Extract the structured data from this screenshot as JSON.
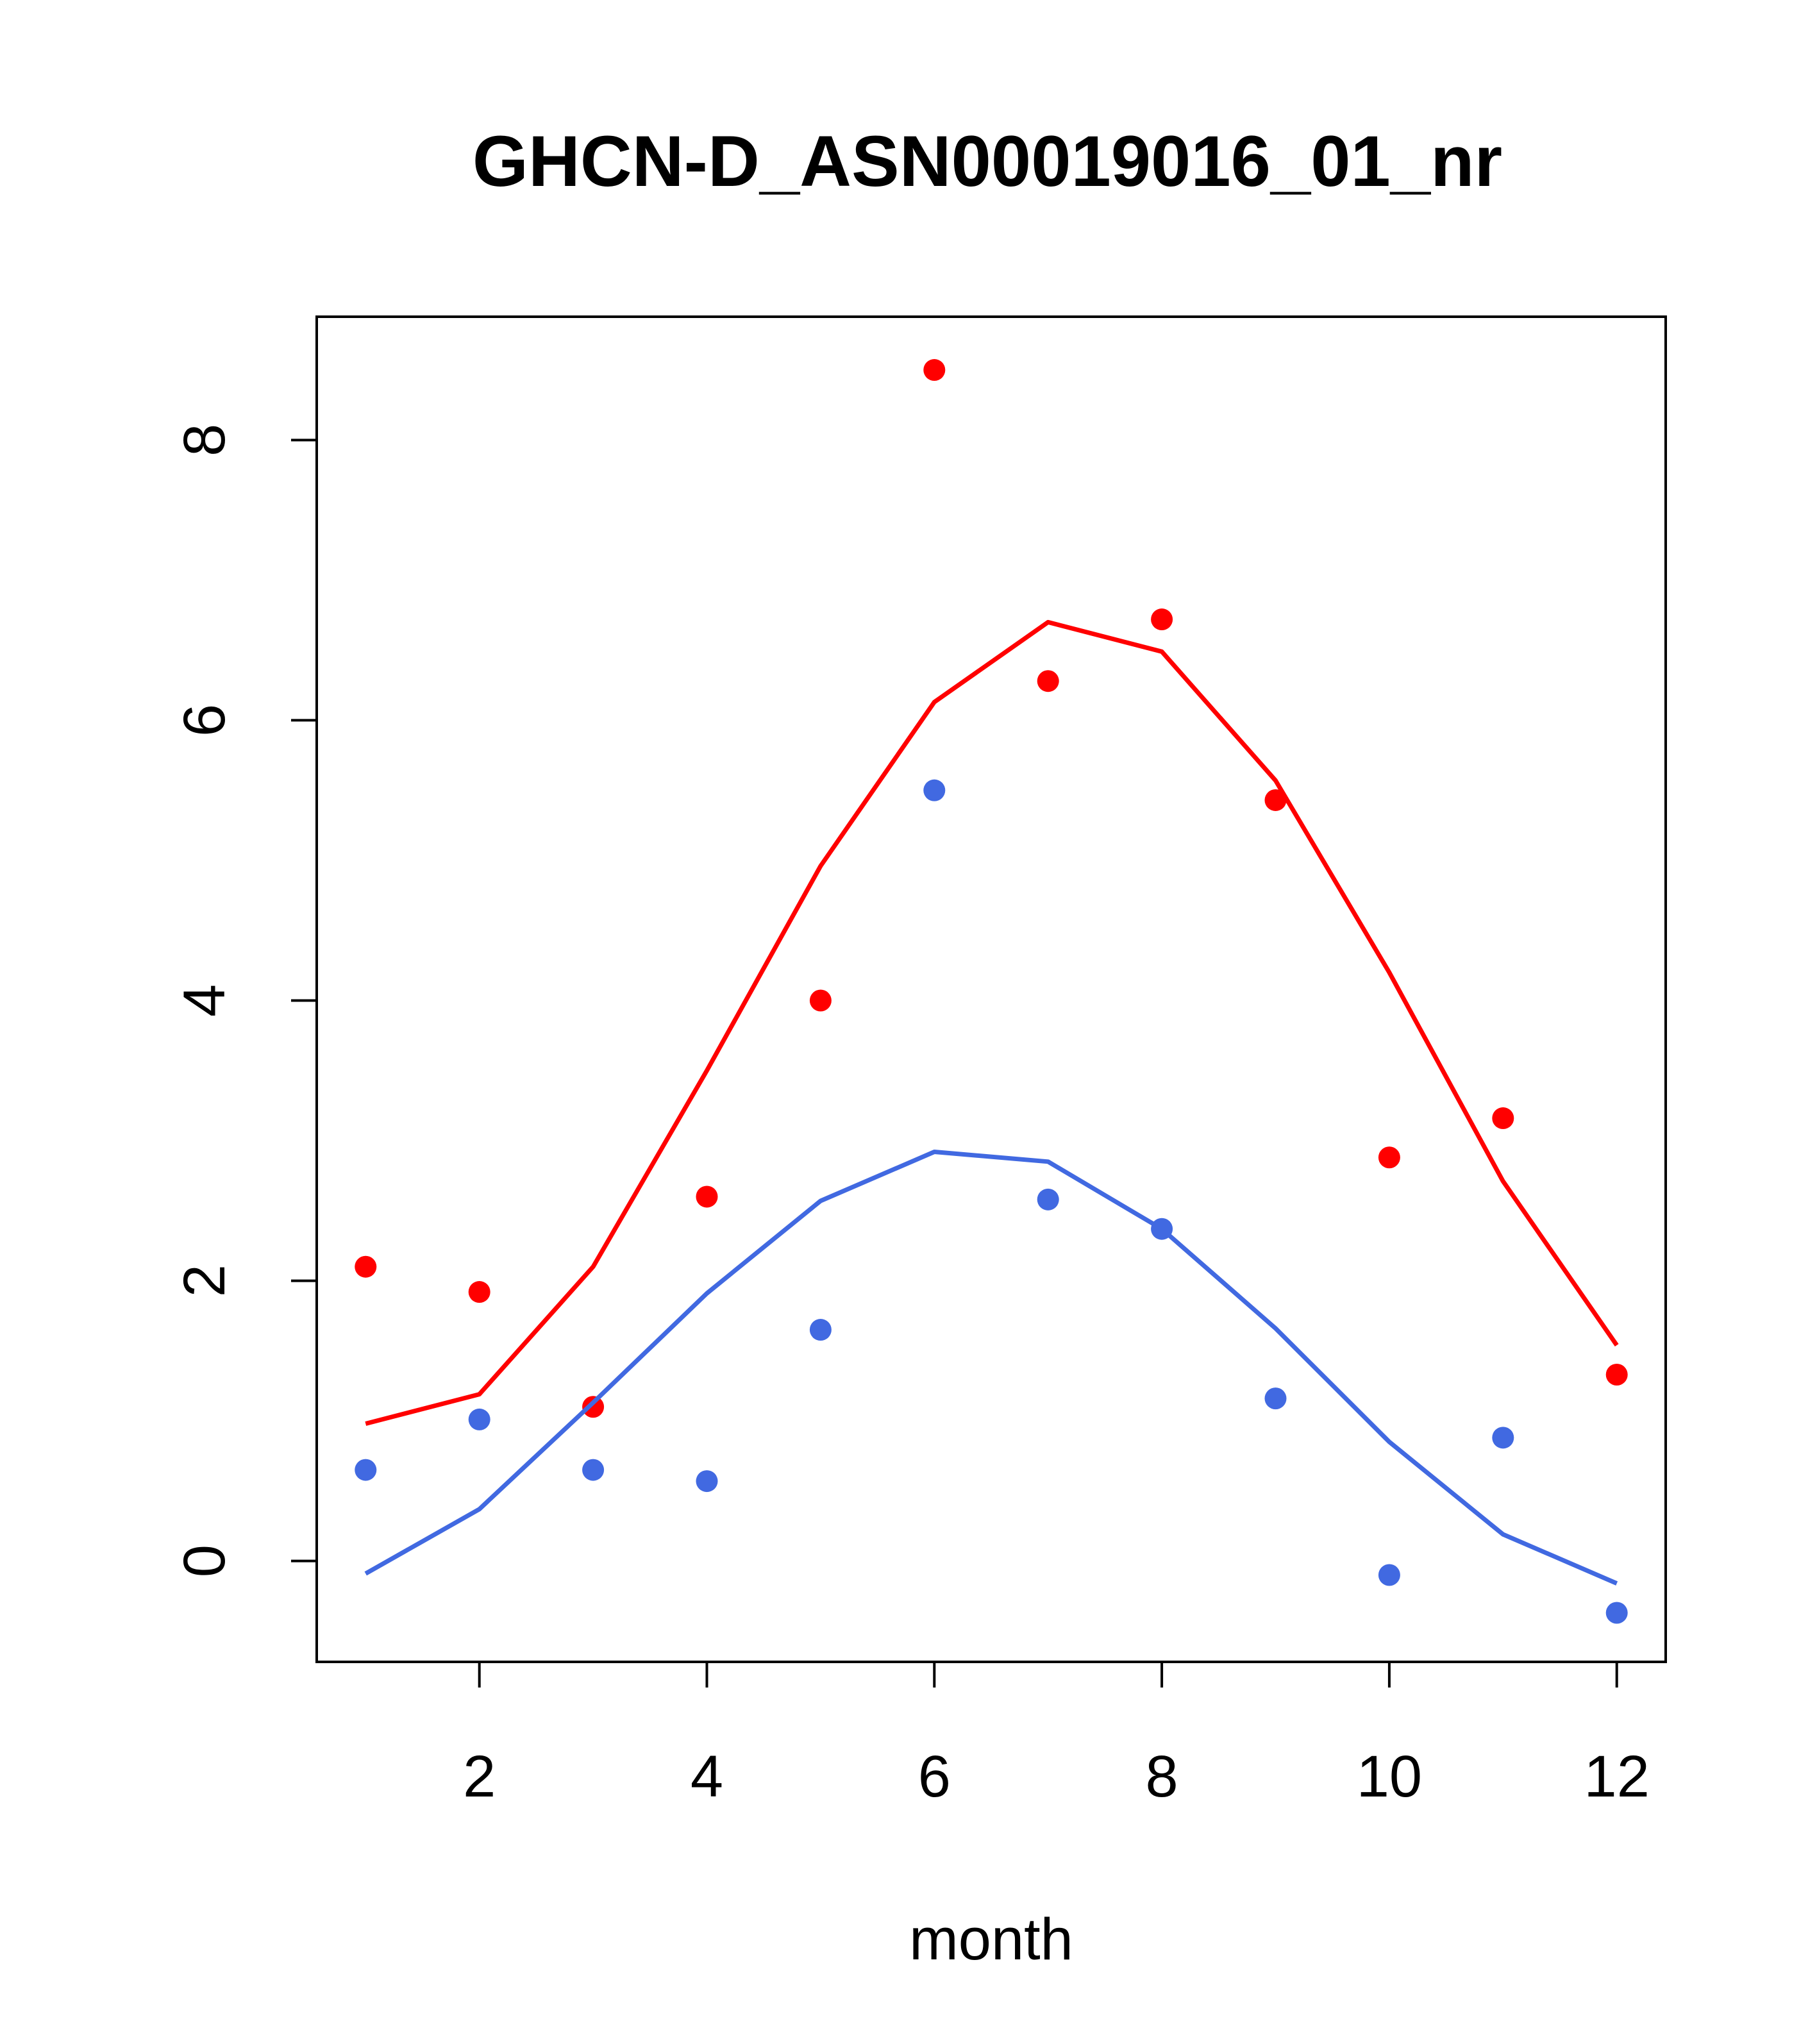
{
  "chart_data": {
    "type": "scatter",
    "title": "GHCN-D_ASN00019016_01_nr",
    "xlabel": "month",
    "ylabel": "",
    "xlim": [
      0.57,
      12.43
    ],
    "ylim": [
      -0.72,
      8.88
    ],
    "x_ticks": [
      2,
      4,
      6,
      8,
      10,
      12
    ],
    "y_ticks": [
      0,
      2,
      4,
      6,
      8
    ],
    "grid": false,
    "legend": "none",
    "x": [
      1,
      2,
      3,
      4,
      5,
      6,
      7,
      8,
      9,
      10,
      11,
      12
    ],
    "series": [
      {
        "color": "#ff0000",
        "points": [
          2.1,
          1.92,
          1.1,
          2.6,
          4.0,
          8.5,
          6.28,
          6.72,
          5.43,
          2.88,
          3.16,
          1.33
        ],
        "line": [
          0.98,
          1.19,
          2.1,
          3.5,
          4.96,
          6.13,
          6.7,
          6.49,
          5.57,
          4.2,
          2.71,
          1.54
        ]
      },
      {
        "color": "#4169e1",
        "points": [
          0.65,
          1.01,
          0.65,
          0.57,
          1.65,
          5.5,
          2.58,
          2.37,
          1.16,
          -0.1,
          0.88,
          -0.37
        ],
        "line": [
          -0.09,
          0.37,
          1.13,
          1.91,
          2.57,
          2.92,
          2.85,
          2.37,
          1.66,
          0.85,
          0.19,
          -0.16
        ]
      }
    ]
  }
}
